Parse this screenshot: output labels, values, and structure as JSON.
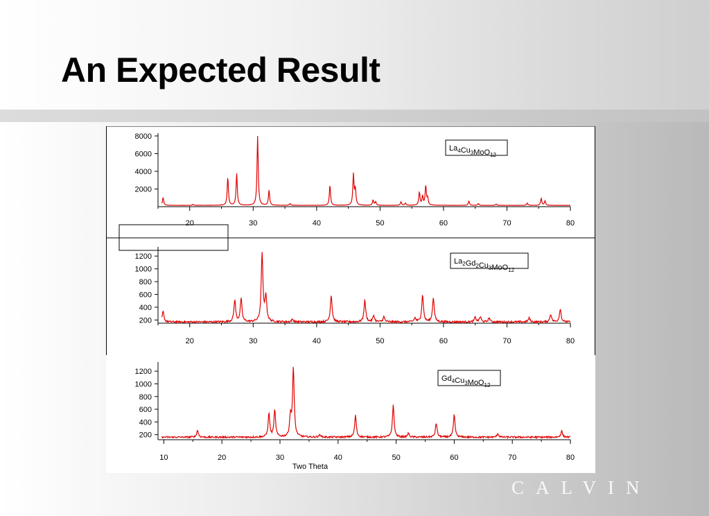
{
  "slide": {
    "title": "An Expected Result",
    "wordmark": "CALVIN"
  },
  "colors": {
    "trace": "#e00000",
    "axis": "#000000"
  },
  "chart_data": [
    {
      "type": "line",
      "legend": {
        "base": "La",
        "parts": [
          [
            "La",
            "4"
          ],
          [
            "Cu",
            "3"
          ],
          [
            "MoO",
            "12"
          ]
        ]
      },
      "xlim": [
        15,
        80
      ],
      "ylim": [
        0,
        8000
      ],
      "xticks": [
        20,
        30,
        40,
        50,
        60,
        70,
        80
      ],
      "yticks": [
        2000,
        4000,
        6000,
        8000
      ],
      "baseline": 150,
      "noise": 8,
      "peaks": [
        [
          15.8,
          900
        ],
        [
          20.5,
          120
        ],
        [
          26.0,
          3200
        ],
        [
          27.4,
          3600
        ],
        [
          30.7,
          7900
        ],
        [
          32.5,
          1700
        ],
        [
          35.8,
          200
        ],
        [
          42.1,
          2300
        ],
        [
          45.8,
          3500
        ],
        [
          46.1,
          1800
        ],
        [
          48.9,
          600
        ],
        [
          49.3,
          400
        ],
        [
          53.3,
          400
        ],
        [
          54.0,
          250
        ],
        [
          56.2,
          1500
        ],
        [
          56.7,
          1000
        ],
        [
          57.2,
          2200
        ],
        [
          57.5,
          800
        ],
        [
          64.0,
          500
        ],
        [
          65.5,
          200
        ],
        [
          68.3,
          150
        ],
        [
          73.2,
          250
        ],
        [
          75.4,
          800
        ],
        [
          76.0,
          500
        ]
      ],
      "width": 0.11
    },
    {
      "type": "line",
      "legend": {
        "parts": [
          [
            "La",
            "2"
          ],
          [
            "Gd",
            "2"
          ],
          [
            "Cu",
            "3"
          ],
          [
            "MoO",
            "12"
          ]
        ]
      },
      "xlim": [
        15,
        80
      ],
      "ylim": [
        150,
        1300
      ],
      "xticks": [
        20,
        30,
        40,
        50,
        60,
        70,
        80
      ],
      "yticks": [
        200,
        400,
        600,
        800,
        1000,
        1200
      ],
      "baseline": 170,
      "noise": 14,
      "peaks": [
        [
          15.8,
          160
        ],
        [
          27.1,
          340
        ],
        [
          28.1,
          360
        ],
        [
          31.4,
          1070
        ],
        [
          32.0,
          400
        ],
        [
          36.2,
          40
        ],
        [
          42.3,
          420
        ],
        [
          47.6,
          340
        ],
        [
          49.0,
          100
        ],
        [
          50.6,
          80
        ],
        [
          55.5,
          60
        ],
        [
          56.7,
          420
        ],
        [
          58.4,
          380
        ],
        [
          65.0,
          70
        ],
        [
          65.8,
          80
        ],
        [
          67.2,
          60
        ],
        [
          73.5,
          60
        ],
        [
          76.9,
          120
        ],
        [
          78.4,
          200
        ]
      ],
      "width": 0.16
    },
    {
      "type": "line",
      "legend": {
        "parts": [
          [
            "Gd",
            "4"
          ],
          [
            "Cu",
            "3"
          ],
          [
            "MoO",
            "12"
          ]
        ]
      },
      "xlim": [
        9,
        80
      ],
      "ylim": [
        120,
        1300
      ],
      "xticks": [
        10,
        20,
        30,
        40,
        50,
        60,
        70,
        80
      ],
      "yticks": [
        200,
        400,
        600,
        800,
        1000,
        1200
      ],
      "xlabel": "Two Theta",
      "baseline": 160,
      "noise": 13,
      "peaks": [
        [
          15.8,
          110
        ],
        [
          28.1,
          370
        ],
        [
          29.1,
          420
        ],
        [
          31.8,
          320
        ],
        [
          32.3,
          1080
        ],
        [
          36.9,
          40
        ],
        [
          43.0,
          340
        ],
        [
          49.5,
          500
        ],
        [
          52.1,
          60
        ],
        [
          56.9,
          220
        ],
        [
          60.0,
          350
        ],
        [
          67.5,
          60
        ],
        [
          78.5,
          100
        ]
      ],
      "width": 0.17
    }
  ]
}
